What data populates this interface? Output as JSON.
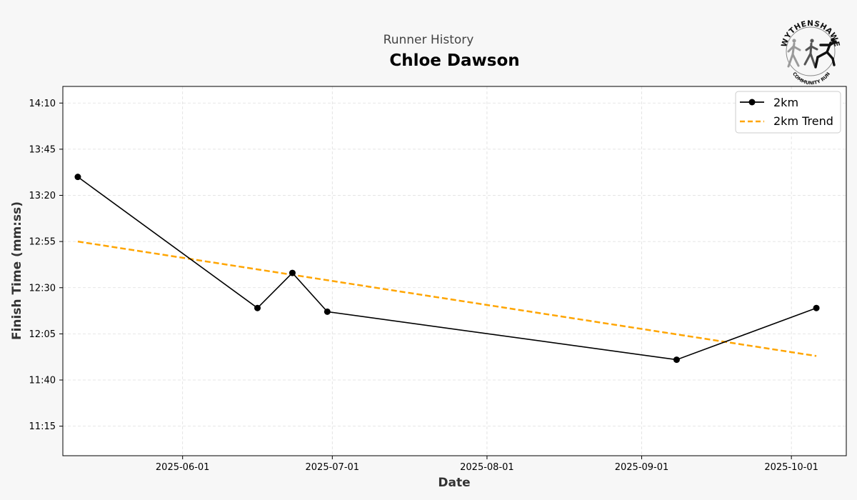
{
  "header": {
    "suptitle": "Runner History",
    "runner_name": "Chloe Dawson"
  },
  "logo": {
    "top_text": "WYTHENSHAWE",
    "bottom_text": "COMMUNITY RUN"
  },
  "chart_data": {
    "type": "line",
    "title": "Chloe Dawson",
    "xlabel": "Date",
    "ylabel": "Finish Time (mm:ss)",
    "x_ticks": [
      "2025-06-01",
      "2025-07-01",
      "2025-08-01",
      "2025-09-01",
      "2025-10-01"
    ],
    "y_ticks": [
      "11:15",
      "11:40",
      "12:05",
      "12:30",
      "12:55",
      "13:20",
      "13:45",
      "14:10"
    ],
    "xlim": [
      "2025-05-08",
      "2025-10-12"
    ],
    "ylim": [
      "10:59",
      "14:19"
    ],
    "grid": true,
    "legend_position": "top-right",
    "series": [
      {
        "name": "2km",
        "style": "solid-marker",
        "color": "#000000",
        "points": [
          {
            "date": "2025-05-11",
            "time": "13:30"
          },
          {
            "date": "2025-06-16",
            "time": "12:19"
          },
          {
            "date": "2025-06-23",
            "time": "12:38"
          },
          {
            "date": "2025-06-30",
            "time": "12:17"
          },
          {
            "date": "2025-09-08",
            "time": "11:51"
          },
          {
            "date": "2025-10-06",
            "time": "12:19"
          }
        ]
      },
      {
        "name": "2km Trend",
        "style": "dashed",
        "color": "#ffa500",
        "points": [
          {
            "date": "2025-05-11",
            "time": "12:55"
          },
          {
            "date": "2025-10-06",
            "time": "11:53"
          }
        ]
      }
    ]
  }
}
